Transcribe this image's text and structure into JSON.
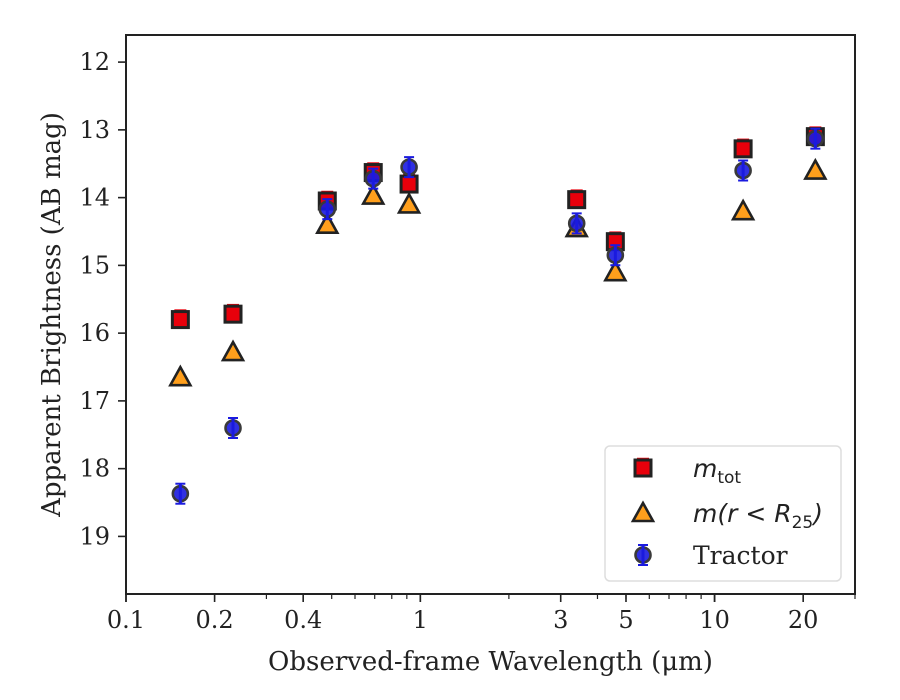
{
  "chart_data": {
    "type": "scatter",
    "xlabel": "Observed-frame Wavelength (μm)",
    "ylabel": "Apparent Brightness (AB mag)",
    "xscale": "log",
    "xlim": [
      0.1,
      30
    ],
    "ylim": [
      19.85,
      11.6
    ],
    "y_inverted": true,
    "grid": false,
    "legend_position": "lower-right",
    "xticks": [
      {
        "value": 0.1,
        "label": "0.1"
      },
      {
        "value": 0.2,
        "label": "0.2"
      },
      {
        "value": 0.4,
        "label": "0.4"
      },
      {
        "value": 1,
        "label": "1"
      },
      {
        "value": 3,
        "label": "3"
      },
      {
        "value": 5,
        "label": "5"
      },
      {
        "value": 10,
        "label": "10"
      },
      {
        "value": 20,
        "label": "20"
      }
    ],
    "yticks": [
      {
        "value": 12,
        "label": "12"
      },
      {
        "value": 13,
        "label": "13"
      },
      {
        "value": 14,
        "label": "14"
      },
      {
        "value": 15,
        "label": "15"
      },
      {
        "value": 16,
        "label": "16"
      },
      {
        "value": 17,
        "label": "17"
      },
      {
        "value": 18,
        "label": "18"
      },
      {
        "value": 19,
        "label": "19"
      }
    ],
    "series": [
      {
        "name": "m_tot",
        "marker": "square",
        "color": "#e8000b",
        "errorbar_color": "#e8000b",
        "points": [
          {
            "x": 0.153,
            "y": 15.8
          },
          {
            "x": 0.231,
            "y": 15.72
          },
          {
            "x": 0.483,
            "y": 14.05
          },
          {
            "x": 0.692,
            "y": 13.63
          },
          {
            "x": 0.916,
            "y": 13.8
          },
          {
            "x": 3.4,
            "y": 14.03
          },
          {
            "x": 4.6,
            "y": 14.65
          },
          {
            "x": 12.5,
            "y": 13.28
          },
          {
            "x": 22.0,
            "y": 13.1
          }
        ]
      },
      {
        "name": "m(r<R25)",
        "marker": "triangle",
        "color": "#ff9f1c",
        "errorbar_color": "#f0b400",
        "points": [
          {
            "x": 0.153,
            "y": 16.65
          },
          {
            "x": 0.231,
            "y": 16.28
          },
          {
            "x": 0.483,
            "y": 14.4
          },
          {
            "x": 0.692,
            "y": 13.97
          },
          {
            "x": 0.916,
            "y": 14.1
          },
          {
            "x": 3.4,
            "y": 14.45
          },
          {
            "x": 4.6,
            "y": 15.1
          },
          {
            "x": 12.5,
            "y": 14.2
          },
          {
            "x": 22.0,
            "y": 13.6
          }
        ]
      },
      {
        "name": "Tractor",
        "marker": "circle",
        "color": "#1a1adf",
        "errorbar_color": "#1a1adf",
        "points": [
          {
            "x": 0.153,
            "y": 18.37
          },
          {
            "x": 0.231,
            "y": 17.4
          },
          {
            "x": 0.483,
            "y": 14.17
          },
          {
            "x": 0.692,
            "y": 13.72
          },
          {
            "x": 0.916,
            "y": 13.55
          },
          {
            "x": 3.4,
            "y": 14.38
          },
          {
            "x": 4.6,
            "y": 14.85
          },
          {
            "x": 12.5,
            "y": 13.6
          },
          {
            "x": 22.0,
            "y": 13.13
          }
        ]
      }
    ],
    "legend": {
      "entries": [
        {
          "label_base": "m",
          "label_sub": "tot",
          "marker": "square"
        },
        {
          "label_base": "m(r < R",
          "label_sub": "25",
          "label_tail": ")",
          "marker": "triangle"
        },
        {
          "label_base": "Tractor",
          "marker": "circle"
        }
      ]
    }
  }
}
